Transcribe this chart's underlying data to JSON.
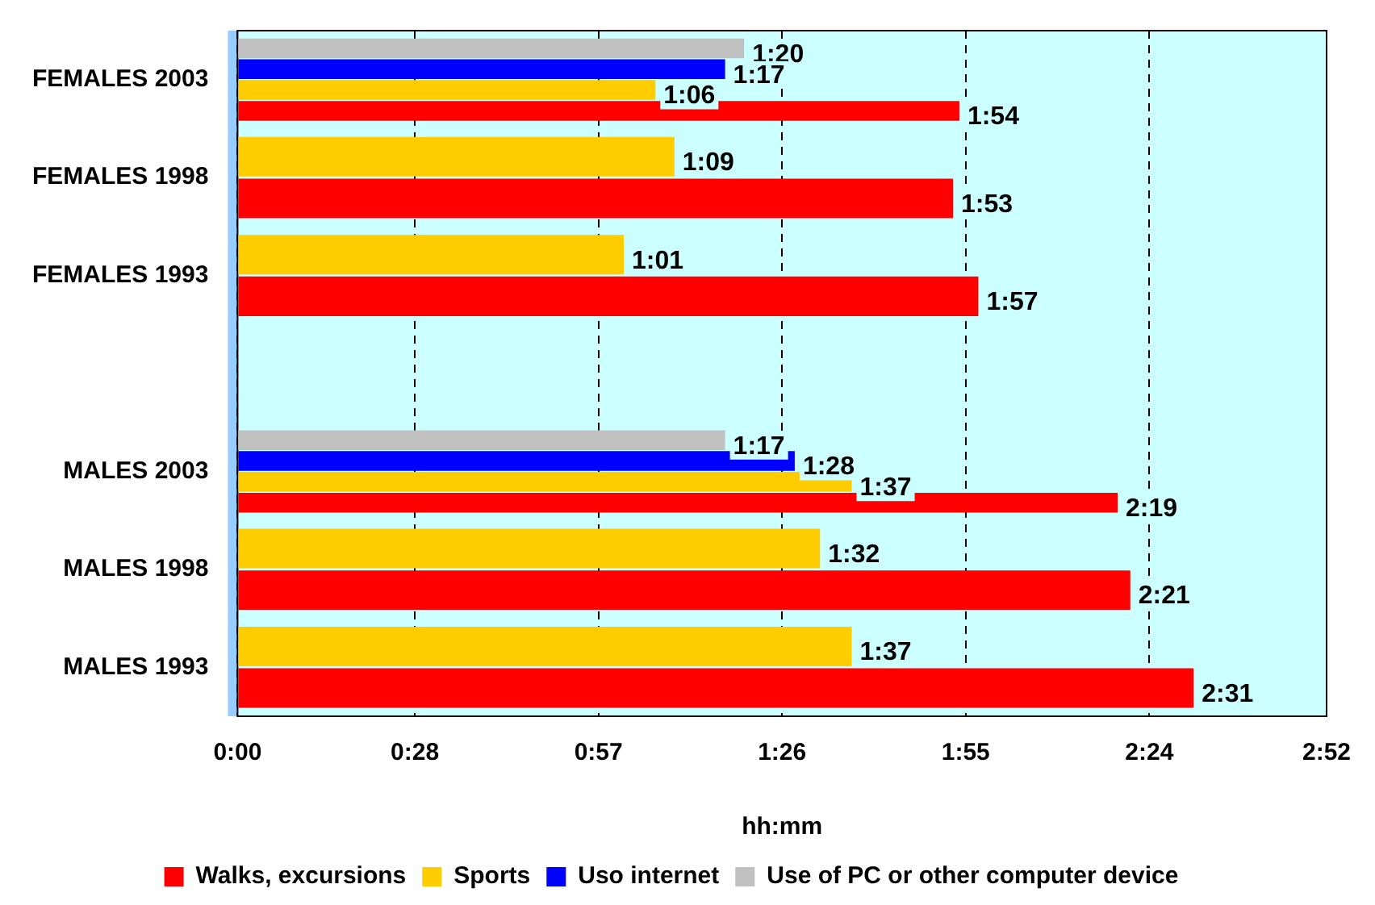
{
  "chart_data": {
    "type": "bar",
    "orientation": "horizontal",
    "xlabel": "hh:mm",
    "categories": [
      "FEMALES 2003",
      "FEMALES 1998",
      "FEMALES 1993",
      null,
      "MALES 2003",
      "MALES 1998",
      "MALES 1993"
    ],
    "series": [
      {
        "name": "Use of PC or other computer device",
        "color": "#c0c0c0",
        "values": [
          80,
          null,
          null,
          null,
          77,
          null,
          null
        ],
        "value_labels": [
          "1:20",
          null,
          null,
          null,
          "1:17",
          null,
          null
        ]
      },
      {
        "name": "Uso internet",
        "color": "#0000ff",
        "values": [
          77,
          null,
          null,
          null,
          88,
          null,
          null
        ],
        "value_labels": [
          "1:17",
          null,
          null,
          null,
          "1:28",
          null,
          null
        ]
      },
      {
        "name": "Sports",
        "color": "#ffcc00",
        "values": [
          66,
          69,
          61,
          null,
          97,
          92,
          97
        ],
        "value_labels": [
          "1:06",
          "1:09",
          "1:01",
          null,
          "1:37",
          "1:32",
          "1:37"
        ]
      },
      {
        "name": "Walks, excursions",
        "color": "#ff0000",
        "values": [
          114,
          113,
          117,
          null,
          139,
          141,
          151
        ],
        "value_labels": [
          "1:54",
          "1:53",
          "1:57",
          null,
          "2:19",
          "2:21",
          "2:31"
        ]
      }
    ],
    "xlim": [
      0,
      172
    ],
    "xticks": [
      {
        "value": 0,
        "label": "0:00"
      },
      {
        "value": 28,
        "label": "0:28"
      },
      {
        "value": 57,
        "label": "0:57"
      },
      {
        "value": 86,
        "label": "1:26"
      },
      {
        "value": 115,
        "label": "1:55"
      },
      {
        "value": 144,
        "label": "2:24"
      },
      {
        "value": 172,
        "label": "2:52"
      }
    ],
    "grid": "x",
    "legend": "bottom"
  }
}
